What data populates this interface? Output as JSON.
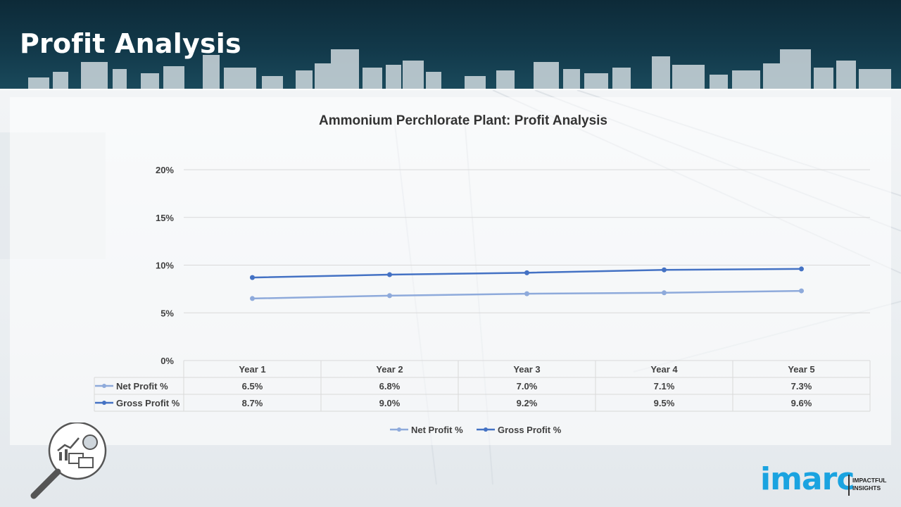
{
  "header": {
    "title": "Profit Analysis"
  },
  "chart_data": {
    "type": "line",
    "title": "Ammonium Perchlorate Plant: Profit Analysis",
    "categories": [
      "Year 1",
      "Year 2",
      "Year 3",
      "Year 4",
      "Year 5"
    ],
    "y_ticks": [
      "0%",
      "5%",
      "10%",
      "15%",
      "20%"
    ],
    "ylim": [
      0,
      20
    ],
    "grid": true,
    "legend_position": "bottom",
    "data_table": true,
    "series": [
      {
        "name": "Net Profit %",
        "values": [
          6.5,
          6.8,
          7.0,
          7.1,
          7.3
        ],
        "labels": [
          "6.5%",
          "6.8%",
          "7.0%",
          "7.1%",
          "7.3%"
        ],
        "color": "#8eaadb"
      },
      {
        "name": "Gross Profit %",
        "values": [
          8.7,
          9.0,
          9.2,
          9.5,
          9.6
        ],
        "labels": [
          "8.7%",
          "9.0%",
          "9.2%",
          "9.5%",
          "9.6%"
        ],
        "color": "#4472c4"
      }
    ]
  },
  "logo": {
    "word": "imarc",
    "tagline": "IMPACTFUL INSIGHTS"
  }
}
